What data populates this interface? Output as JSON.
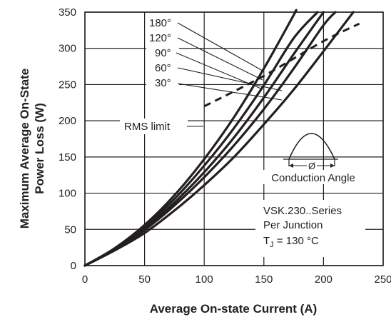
{
  "chart_data": {
    "type": "line",
    "xlabel": "Average On-state Current (A)",
    "ylabel": "Maximum Average On-State Power Loss (W)",
    "ylabel_lines": [
      "Maximum Average On-State",
      "Power Loss (W)"
    ],
    "xlim": [
      0,
      250
    ],
    "ylim": [
      0,
      350
    ],
    "x_ticks": [
      0,
      50,
      100,
      150,
      200,
      250
    ],
    "y_ticks": [
      0,
      50,
      100,
      150,
      200,
      250,
      300,
      350
    ],
    "grid": true,
    "series": [
      {
        "name": "180°",
        "points": [
          [
            0,
            0
          ],
          [
            25,
            24
          ],
          [
            50,
            56
          ],
          [
            75,
            97
          ],
          [
            100,
            147
          ],
          [
            125,
            205
          ],
          [
            150,
            272
          ],
          [
            175,
            346
          ],
          [
            176,
            350
          ]
        ]
      },
      {
        "name": "120°",
        "points": [
          [
            0,
            0
          ],
          [
            25,
            23
          ],
          [
            50,
            54
          ],
          [
            75,
            92
          ],
          [
            100,
            138
          ],
          [
            125,
            190
          ],
          [
            150,
            249
          ],
          [
            175,
            314
          ],
          [
            195,
            350
          ]
        ]
      },
      {
        "name": "90°",
        "points": [
          [
            0,
            0
          ],
          [
            25,
            22
          ],
          [
            50,
            51
          ],
          [
            75,
            87
          ],
          [
            100,
            129
          ],
          [
            125,
            177
          ],
          [
            150,
            232
          ],
          [
            175,
            292
          ],
          [
            200,
            350
          ]
        ]
      },
      {
        "name": "60°",
        "points": [
          [
            0,
            0
          ],
          [
            25,
            22
          ],
          [
            50,
            49
          ],
          [
            75,
            83
          ],
          [
            100,
            122
          ],
          [
            125,
            166
          ],
          [
            150,
            216
          ],
          [
            175,
            272
          ],
          [
            200,
            332
          ],
          [
            210,
            350
          ]
        ]
      },
      {
        "name": "30°",
        "points": [
          [
            0,
            0
          ],
          [
            25,
            21
          ],
          [
            50,
            45
          ],
          [
            75,
            76
          ],
          [
            100,
            111
          ],
          [
            125,
            150
          ],
          [
            150,
            195
          ],
          [
            175,
            243
          ],
          [
            200,
            296
          ],
          [
            225,
            350
          ]
        ]
      }
    ],
    "rms_limit": {
      "label": "RMS limit",
      "points": [
        [
          100,
          220
        ],
        [
          150,
          262
        ],
        [
          200,
          310
        ],
        [
          230,
          334
        ]
      ]
    },
    "annotations": {
      "conduction_symbol": "Ø",
      "conduction_label": "Conduction Angle",
      "series_label": "VSK.230..Series",
      "junction_label": "Per Junction",
      "temperature_label": "T",
      "temperature_subscript": "J",
      "temperature_value": " = 130 °C"
    }
  }
}
